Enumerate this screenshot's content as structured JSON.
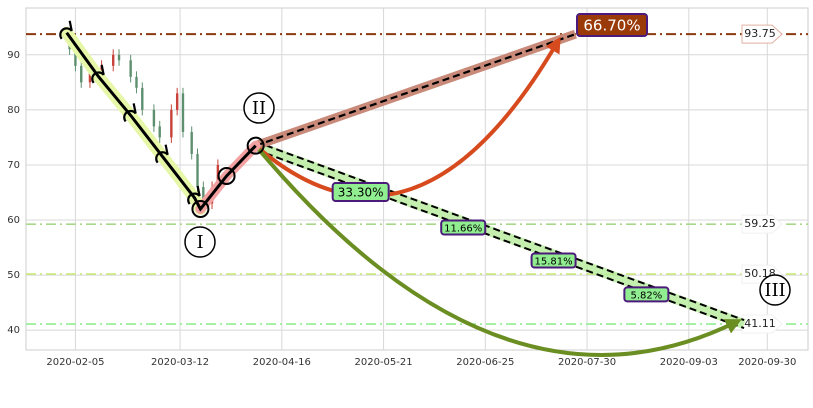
{
  "chart_data": {
    "type": "candlestick",
    "xlim": [
      "2020-01-19",
      "2020-10-14"
    ],
    "xticks": [
      "2020-02-05",
      "2020-03-12",
      "2020-04-16",
      "2020-05-21",
      "2020-06-25",
      "2020-07-30",
      "2020-09-03",
      "2020-09-30"
    ],
    "ylim": [
      36.4,
      98.5
    ],
    "yticks": [
      40,
      50,
      60,
      70,
      80,
      90
    ],
    "grid": true,
    "up_color": "#c8423a",
    "down_color": "#5e9070",
    "candles": {
      "dates": [
        "2020-02-03",
        "2020-02-05",
        "2020-02-07",
        "2020-02-10",
        "2020-02-12",
        "2020-02-14",
        "2020-02-18",
        "2020-02-20",
        "2020-02-24",
        "2020-02-26",
        "2020-02-28",
        "2020-03-03",
        "2020-03-05",
        "2020-03-09",
        "2020-03-11",
        "2020-03-13",
        "2020-03-16",
        "2020-03-18",
        "2020-03-20",
        "2020-03-23",
        "2020-03-25"
      ],
      "open": [
        93,
        91,
        88,
        85,
        87,
        86,
        88,
        90,
        89,
        86,
        84,
        80,
        77,
        75,
        80,
        83,
        76,
        72,
        66,
        63,
        66
      ],
      "close": [
        91,
        88,
        85,
        87,
        86,
        88,
        90,
        89,
        86,
        84,
        80,
        77,
        75,
        80,
        83,
        76,
        72,
        66,
        63,
        66,
        70
      ],
      "high": [
        94,
        92,
        89,
        88,
        88,
        89,
        91,
        91,
        90,
        87,
        85,
        81,
        78,
        81,
        84,
        84,
        77,
        73,
        67,
        67,
        71
      ],
      "low": [
        90,
        87,
        84,
        84,
        85,
        85,
        87,
        88,
        85,
        83,
        79,
        76,
        74,
        74,
        79,
        75,
        71,
        65,
        62,
        62,
        65
      ]
    },
    "wave": {
      "color": "#000000",
      "x": [
        "2020-02-02",
        "2020-02-13",
        "2020-02-24",
        "2020-03-06",
        "2020-03-17",
        "2020-03-19",
        "2020-03-28",
        "2020-04-07"
      ],
      "values": [
        94,
        86,
        79,
        71.5,
        64,
        62,
        68,
        73.5
      ]
    },
    "wave_labels": [
      "I",
      "II",
      "III"
    ],
    "levels": [
      {
        "value": 93.75,
        "color": "#8b3a0f"
      },
      {
        "value": 59.25,
        "color": "#a8d88a"
      },
      {
        "value": 50.18,
        "color": "#c8e87a"
      },
      {
        "value": 41.11,
        "color": "#90ee90"
      }
    ],
    "projections": [
      {
        "x": [
          "2020-04-07",
          "2020-07-26"
        ],
        "values": [
          73.5,
          93.75
        ],
        "label": "66.70%",
        "color": "#c98a7a"
      },
      {
        "x": [
          "2020-04-07",
          "2020-09-22"
        ],
        "values": [
          73.5,
          41.11
        ],
        "label": "33.30%",
        "color": "#b6ec9a"
      }
    ],
    "ratio_labels": [
      "11.66%",
      "15.81%",
      "5.82%"
    ]
  }
}
